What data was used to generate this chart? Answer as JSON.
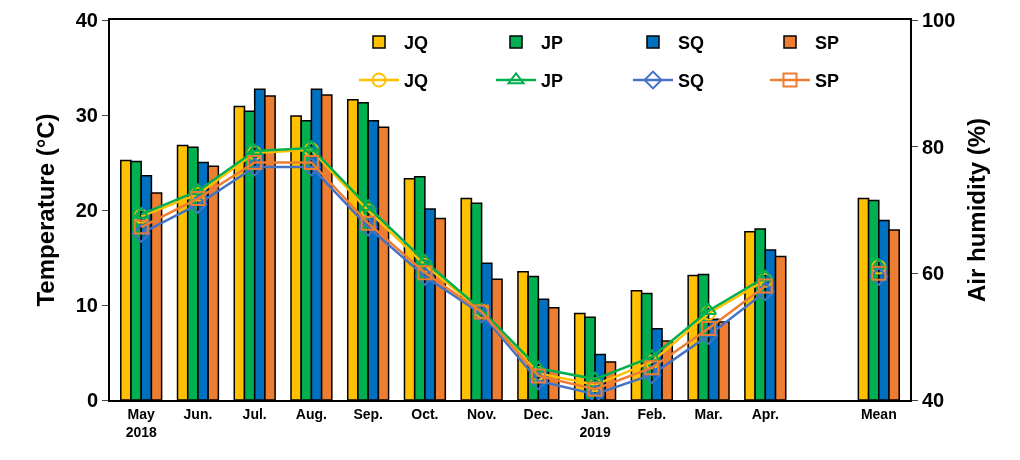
{
  "chart_data": {
    "type": "bar",
    "ylabel": "Temperature (°C)",
    "y2label": "Air humidity (%)",
    "categories": [
      "May\n2018",
      "Jun.",
      "Jul.",
      "Aug.",
      "Sep.",
      "Oct.",
      "Nov.",
      "Dec.",
      "Jan.\n2019",
      "Feb.",
      "Mar.",
      "Apr.",
      null,
      "Mean"
    ],
    "ylim": [
      0,
      40
    ],
    "yticks": [
      0,
      10,
      20,
      30,
      40
    ],
    "y2lim": [
      40,
      100
    ],
    "y2ticks": [
      40,
      60,
      80,
      100
    ],
    "grid": false,
    "legend": "top right",
    "line_style": "solid",
    "series": [
      {
        "name": "JQ",
        "color": "#ffc000",
        "values": [
          25.2,
          26.8,
          30.9,
          29.9,
          31.6,
          23.3,
          21.2,
          13.5,
          9.1,
          11.5,
          13.1,
          17.7,
          null,
          21.2
        ]
      },
      {
        "name": "JP",
        "color": "#00b050",
        "values": [
          25.1,
          26.6,
          30.4,
          29.4,
          31.3,
          23.5,
          20.7,
          13.0,
          8.7,
          11.2,
          13.2,
          18.0,
          null,
          21.0
        ]
      },
      {
        "name": "SQ",
        "color": "#0070c0",
        "values": [
          23.6,
          25.0,
          32.7,
          32.7,
          29.4,
          20.1,
          14.4,
          10.6,
          4.8,
          7.5,
          8.5,
          15.8,
          null,
          18.9
        ]
      },
      {
        "name": "SP",
        "color": "#ed7d31",
        "values": [
          21.8,
          24.6,
          32.0,
          32.1,
          28.7,
          19.1,
          12.7,
          9.7,
          4.0,
          6.2,
          8.2,
          15.1,
          null,
          17.9
        ]
      },
      {
        "name": "JQ",
        "type": "line",
        "axis": "y2",
        "marker": "circle",
        "color": "#ffc000",
        "values": [
          69.0,
          72.5,
          79.0,
          79.5,
          69.9,
          61.3,
          54.0,
          44.2,
          42.4,
          46.0,
          53.7,
          58.9,
          null,
          61.0
        ]
      },
      {
        "name": "JP",
        "type": "line",
        "axis": "y2",
        "marker": "triangle",
        "color": "#00b050",
        "values": [
          69.3,
          73.0,
          79.3,
          79.8,
          70.5,
          61.9,
          54.2,
          45.0,
          43.3,
          46.8,
          54.1,
          59.4,
          null,
          61.2
        ]
      },
      {
        "name": "SQ",
        "type": "line",
        "axis": "y2",
        "marker": "diamond",
        "color": "#4472c4",
        "values": [
          66.3,
          70.9,
          76.8,
          76.8,
          67.3,
          59.5,
          53.6,
          43.0,
          40.9,
          44.0,
          50.2,
          57.1,
          null,
          59.5
        ]
      },
      {
        "name": "SP",
        "type": "line",
        "axis": "y2",
        "marker": "square",
        "color": "#ed7d31",
        "values": [
          67.3,
          71.8,
          77.5,
          77.5,
          67.9,
          60.1,
          53.9,
          43.8,
          41.7,
          45.1,
          51.3,
          58.0,
          null,
          60.0
        ]
      }
    ]
  }
}
